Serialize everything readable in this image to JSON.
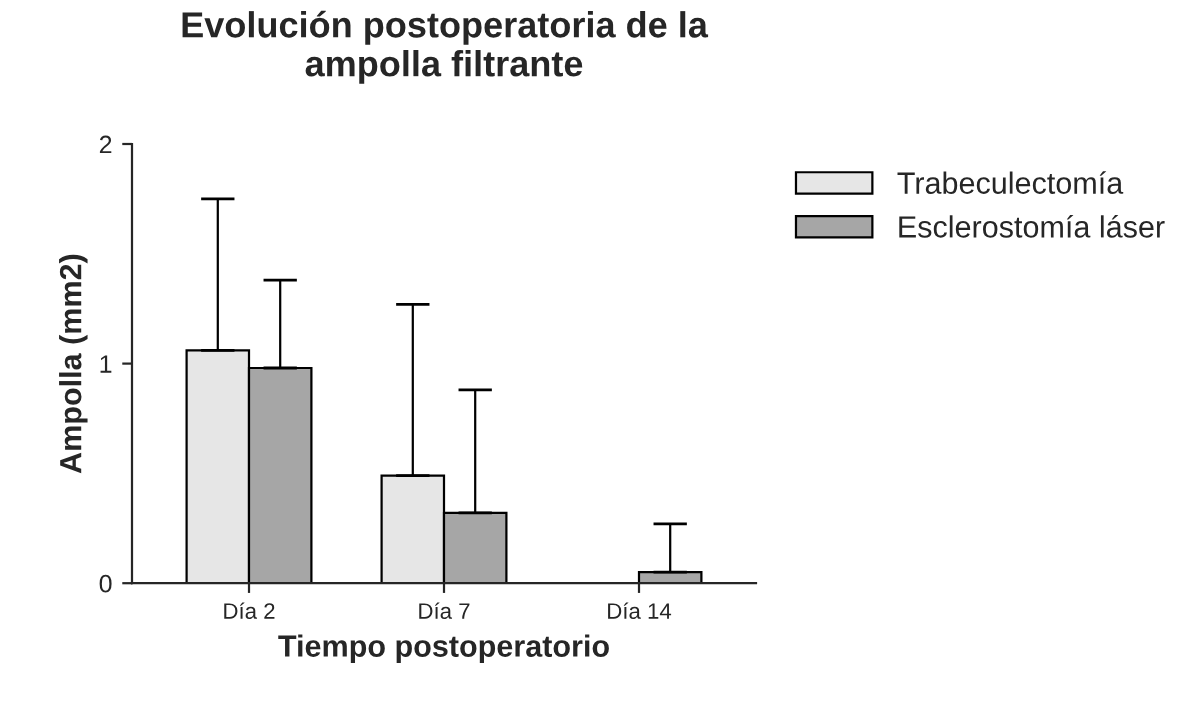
{
  "chart_data": {
    "type": "bar",
    "title": "Evolución postoperatoria de la\nampolla filtrante",
    "xlabel": "Tiempo postoperatorio",
    "ylabel": "Ampolla (mm2)",
    "categories": [
      "Día 2",
      "Día 7",
      "Día 14"
    ],
    "series": [
      {
        "name": "Trabeculectomía",
        "color": "#e6e6e6",
        "values": [
          1.06,
          0.49,
          0.0
        ],
        "errors": [
          [
            1.06,
            1.75
          ],
          [
            0.49,
            1.27
          ],
          null
        ]
      },
      {
        "name": "Esclerostomía láser",
        "color": "#a6a6a6",
        "values": [
          0.98,
          0.32,
          0.05
        ],
        "errors": [
          [
            0.98,
            1.38
          ],
          [
            0.32,
            0.88
          ],
          [
            0.05,
            0.27
          ]
        ]
      }
    ],
    "ylim": [
      0,
      2
    ],
    "yticks": [
      0,
      1,
      2
    ],
    "grid": false,
    "legend": "top right"
  }
}
